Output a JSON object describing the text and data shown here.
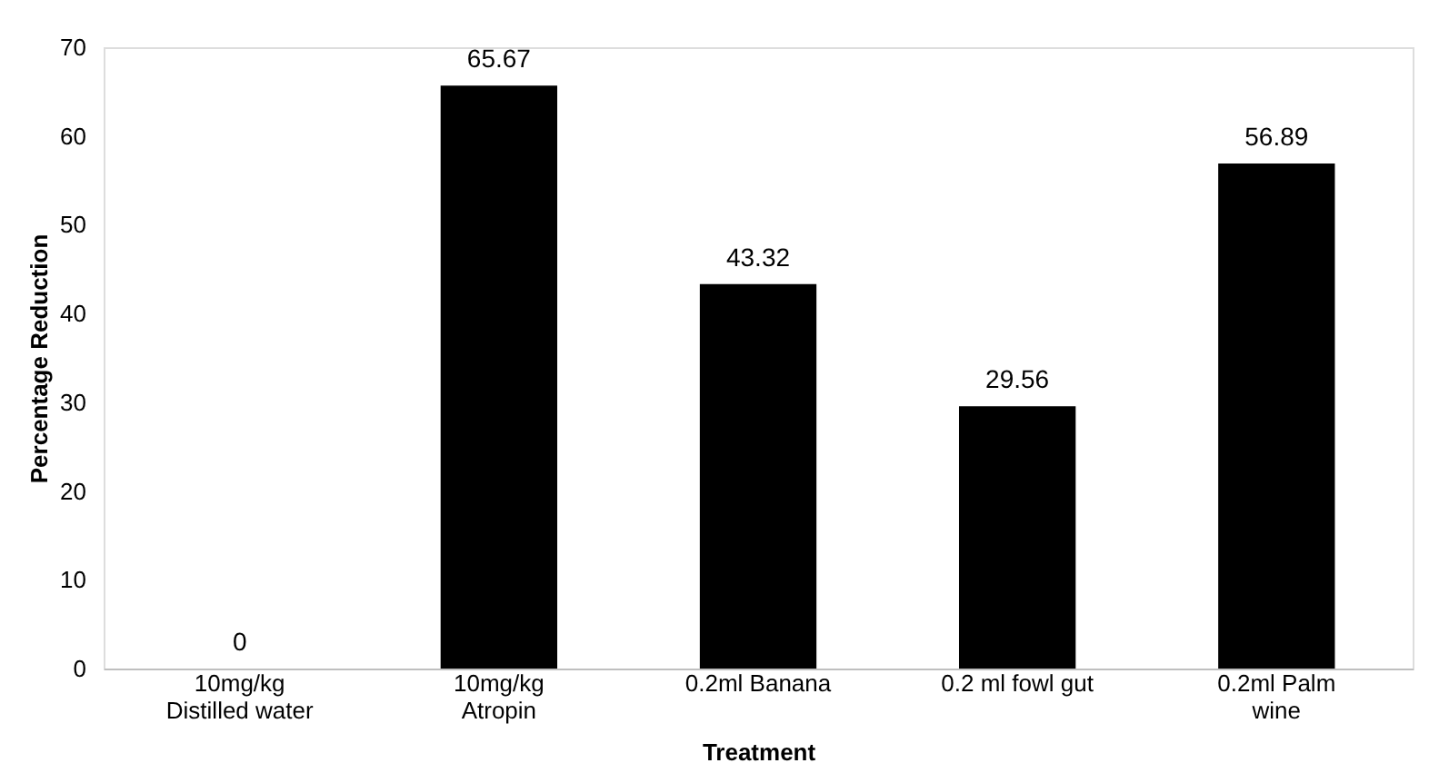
{
  "chart_data": {
    "type": "bar",
    "categories": [
      "10mg/kg\nDistilled water",
      "10mg/kg\nAtropin",
      "0.2ml Banana",
      "0.2 ml fowl gut",
      "0.2ml Palm\nwine"
    ],
    "values": [
      0,
      65.67,
      43.32,
      29.56,
      56.89
    ],
    "color": "#000000",
    "xlabel": "Treatment",
    "ylabel": "Percentage Reduction",
    "ylim": [
      0,
      70
    ],
    "yticks": [
      0,
      10,
      20,
      30,
      40,
      50,
      60,
      70
    ],
    "data_labels": true,
    "grid": false
  }
}
